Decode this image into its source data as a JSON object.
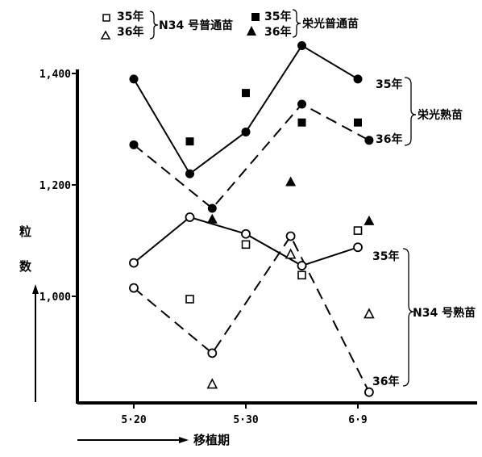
{
  "chart_data": {
    "type": "scatter",
    "title": "",
    "xlabel": "移植期",
    "ylabel": [
      "粒",
      "数"
    ],
    "x_ticks": [
      "5·20",
      "5·30",
      "6·9"
    ],
    "y_ticks": [
      "1,000",
      "1,200",
      "1,400"
    ],
    "ylim": [
      810,
      1460
    ],
    "xlim": [
      0,
      28
    ],
    "grid": false,
    "legend_position": "top-left",
    "legend": [
      {
        "marker": "open-square",
        "label": "35年"
      },
      {
        "marker": "open-triangle",
        "label": "36年"
      },
      {
        "marker": "filled-square",
        "label": "35年"
      },
      {
        "marker": "filled-triangle",
        "label": "36年"
      }
    ],
    "legend_group_labels": [
      "N34 号普通苗",
      "栄光普通苗"
    ],
    "annotations": {
      "eiko_35": "35年",
      "eiko_36": "36年",
      "eiko_group": "栄光熟苗",
      "n34_35": "35年",
      "n34_36": "36年",
      "n34_group": "N34 号熟苗"
    },
    "series": [
      {
        "name": "栄光熟苗 35年",
        "marker": "filled-circle",
        "line": "solid",
        "x": [
          5,
          10,
          15,
          20,
          25
        ],
        "values": [
          1390,
          1220,
          1295,
          1450,
          1390
        ]
      },
      {
        "name": "栄光熟苗 36年",
        "marker": "filled-circle",
        "line": "dashed",
        "x": [
          5,
          12,
          20,
          26
        ],
        "values": [
          1272,
          1158,
          1345,
          1280
        ]
      },
      {
        "name": "N34 号熟苗 35年",
        "marker": "open-circle",
        "line": "solid",
        "x": [
          5,
          10,
          15,
          20,
          25
        ],
        "values": [
          1060,
          1142,
          1112,
          1055,
          1088
        ]
      },
      {
        "name": "N34 号熟苗 36年",
        "marker": "open-circle",
        "line": "dashed",
        "x": [
          5,
          12,
          19,
          26
        ],
        "values": [
          1015,
          898,
          1108,
          828
        ]
      },
      {
        "name": "栄光普通苗 35年",
        "marker": "filled-square",
        "line": "none",
        "x": [
          10,
          15,
          20,
          25
        ],
        "values": [
          1278,
          1365,
          1312,
          1312
        ]
      },
      {
        "name": "栄光普通苗 36年",
        "marker": "filled-triangle",
        "line": "none",
        "x": [
          12,
          19,
          26
        ],
        "values": [
          1138,
          1205,
          1135
        ]
      },
      {
        "name": "N34 号普通苗 35年",
        "marker": "open-square",
        "line": "none",
        "x": [
          10,
          15,
          20,
          25
        ],
        "values": [
          995,
          1093,
          1038,
          1118
        ]
      },
      {
        "name": "N34 号普通苗 36年",
        "marker": "open-triangle",
        "line": "none",
        "x": [
          12,
          19,
          26
        ],
        "values": [
          842,
          1075,
          968
        ]
      }
    ]
  }
}
